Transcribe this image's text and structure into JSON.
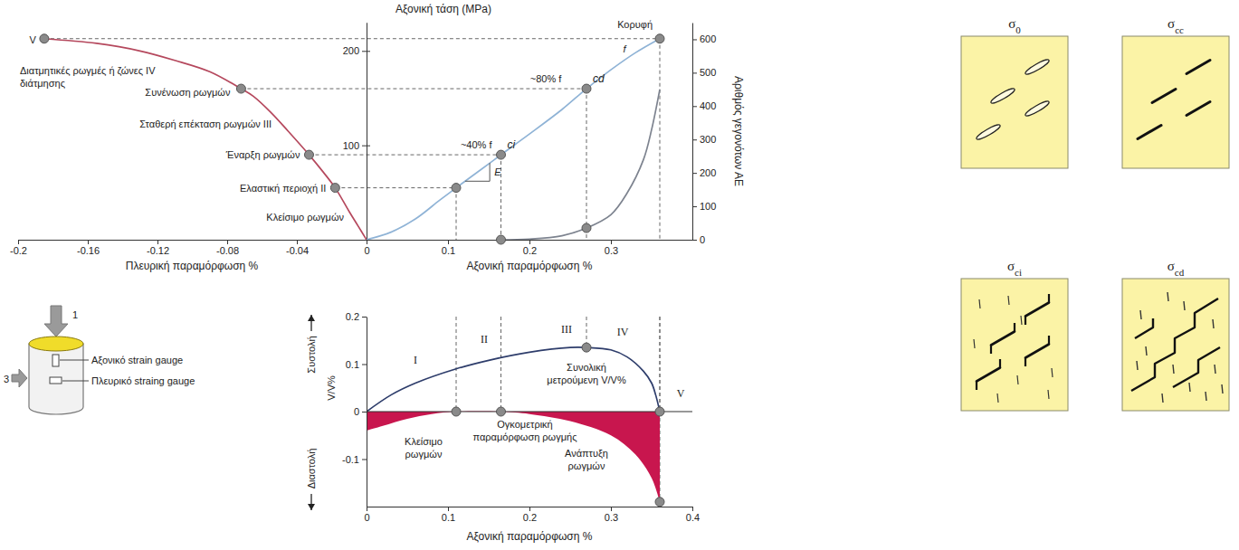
{
  "chart_data": [
    {
      "type": "line",
      "x_label": "Πλευρική παραμόρφωση %",
      "xlim": [
        -0.2,
        0
      ],
      "xticks": [
        -0.2,
        -0.16,
        -0.12,
        -0.08,
        -0.04,
        0
      ],
      "ylim": [
        0,
        230
      ],
      "yticks": [
        100,
        200
      ],
      "tick_labels": "x",
      "series": [
        {
          "color": "#b5485d",
          "x": [
            0,
            -0.005,
            -0.01,
            -0.018,
            -0.025,
            -0.033,
            -0.045,
            -0.055,
            -0.065,
            -0.072,
            -0.09,
            -0.11,
            -0.13,
            -0.155,
            -0.185
          ],
          "values": [
            0,
            15,
            30,
            55,
            72,
            90,
            115,
            135,
            152,
            160,
            178,
            190,
            200,
            208,
            213
          ]
        }
      ],
      "points": [
        {
          "x": -0.018,
          "y": 55,
          "label": "Ελαστική περιοχή II"
        },
        {
          "x": -0.033,
          "y": 90,
          "label": "Έναρξη ρωγμών"
        },
        {
          "x": -0.072,
          "y": 160,
          "label": "Συνένωση ρωγμών"
        },
        {
          "x": -0.185,
          "y": 213,
          "label": "V"
        }
      ],
      "annotations": [
        "Διατμητικές ρωγμές ή ζώνες IV",
        "διάτμησης",
        "Σταθερή επέκταση ρωγμών III",
        "Κλείσιμο ρωγμών"
      ]
    },
    {
      "type": "line",
      "y_label": "Αξονική τάση (MPa)",
      "x_label": "Αξονική παραμόρφωση %",
      "xlim": [
        0,
        0.4
      ],
      "xticks": [
        0.1,
        0.2,
        0.3
      ],
      "ylim": [
        0,
        230
      ],
      "yticks": [
        100,
        200
      ],
      "y2_label": "Αριθμός γεγονότων ΑΕ",
      "y2lim": [
        0,
        650
      ],
      "y2ticks": [
        0,
        100,
        200,
        300,
        400,
        500,
        600
      ],
      "series": [
        {
          "color": "#8fb3d6",
          "x": [
            0,
            0.03,
            0.06,
            0.09,
            0.11,
            0.14,
            0.165,
            0.2,
            0.24,
            0.27,
            0.3,
            0.33,
            0.36
          ],
          "values": [
            0,
            8,
            22,
            42,
            55,
            74,
            90,
            112,
            138,
            160,
            180,
            198,
            213
          ]
        },
        {
          "axis": "y2",
          "color": "#7d838f",
          "x": [
            0.165,
            0.2,
            0.24,
            0.27,
            0.3,
            0.32,
            0.34,
            0.35,
            0.36
          ],
          "values": [
            0,
            2,
            12,
            35,
            75,
            140,
            240,
            330,
            450
          ]
        }
      ],
      "points": [
        {
          "x": 0.11,
          "y": 55
        },
        {
          "x": 0.165,
          "y": 90,
          "label": "ci"
        },
        {
          "x": 0.27,
          "y": 160,
          "label": "cd"
        },
        {
          "x": 0.36,
          "y": 213,
          "label": "Κορυφή"
        }
      ],
      "y2_points": [
        {
          "x": 0.165,
          "y": 0
        },
        {
          "x": 0.27,
          "y": 35
        }
      ],
      "annotations": [
        "~40% f",
        "~80% f",
        "f",
        "E"
      ]
    },
    {
      "type": "line",
      "x_label": "Αξονική παραμόρφωση %",
      "y_label": "V/V%",
      "xlim": [
        0,
        0.4
      ],
      "xticks": [
        0,
        0.1,
        0.2,
        0.3,
        0.4
      ],
      "ylim": [
        -0.2,
        0.2
      ],
      "yticks": [
        -0.1,
        0,
        0.1,
        0.2
      ],
      "series": [
        {
          "type": "area",
          "color": "#c8164e",
          "x": [
            0,
            0.02,
            0.05,
            0.08,
            0.11,
            0.165,
            0.2,
            0.25,
            0.3,
            0.33,
            0.35,
            0.36
          ],
          "values": [
            -0.04,
            -0.03,
            -0.015,
            -0.005,
            0,
            0,
            -0.005,
            -0.02,
            -0.05,
            -0.09,
            -0.14,
            -0.19
          ]
        },
        {
          "type": "line",
          "color": "#2e3d6b",
          "x": [
            0,
            0.03,
            0.06,
            0.11,
            0.15,
            0.2,
            0.25,
            0.27,
            0.3,
            0.32,
            0.34,
            0.35,
            0.355,
            0.36
          ],
          "values": [
            0,
            0.035,
            0.06,
            0.09,
            0.108,
            0.125,
            0.135,
            0.135,
            0.13,
            0.115,
            0.085,
            0.06,
            0.035,
            0
          ]
        }
      ],
      "points": [
        {
          "x": 0.11,
          "y": 0
        },
        {
          "x": 0.165,
          "y": 0
        },
        {
          "x": 0.27,
          "y": 0.135
        },
        {
          "x": 0.36,
          "y": 0
        },
        {
          "x": 0.36,
          "y": -0.19
        }
      ],
      "regions": [
        "I",
        "II",
        "III",
        "IV",
        "V"
      ],
      "annotations": [
        [
          "Συνολική",
          "μετρούμενη V/V%"
        ],
        [
          "Ογκομετρική",
          "παραμόρφωση ρωγμής"
        ],
        [
          "Κλείσιμο",
          "ρωγμών"
        ],
        [
          "Ανάπτυξη",
          "ρωγμών"
        ]
      ],
      "direction_labels": [
        "Συστολή",
        "Διαστολή"
      ]
    }
  ],
  "specimen": {
    "load_labels": [
      "1",
      "3"
    ],
    "gauge_labels": [
      "Αξονικό strain gauge",
      "Πλευρικό straing gauge"
    ]
  },
  "crack_panels": [
    "σ0",
    "σcc",
    "σci",
    "σcd"
  ]
}
